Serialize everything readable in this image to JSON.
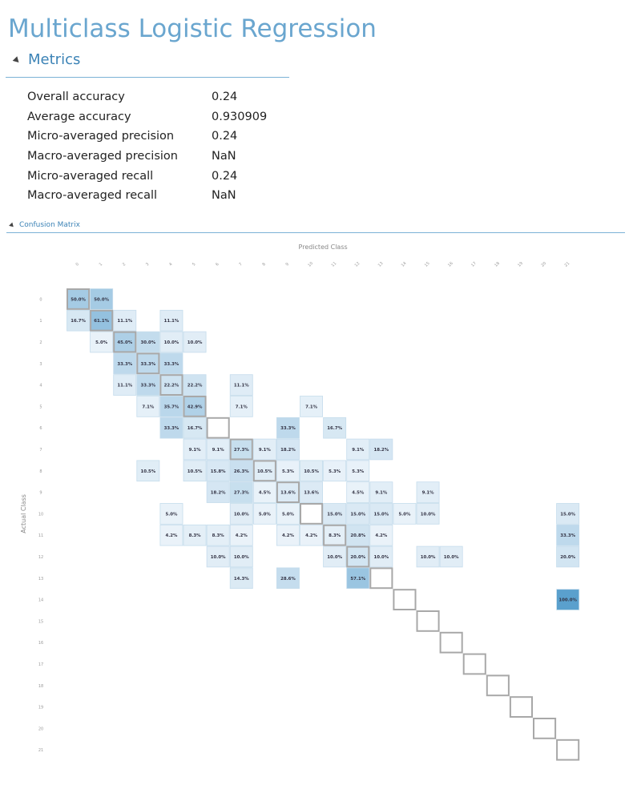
{
  "page": {
    "title": "Multiclass Logistic Regression"
  },
  "metrics": {
    "section_title": "Metrics",
    "rows": [
      {
        "name": "Overall accuracy",
        "value": "0.24"
      },
      {
        "name": "Average accuracy",
        "value": "0.930909"
      },
      {
        "name": "Micro-averaged precision",
        "value": "0.24"
      },
      {
        "name": "Macro-averaged precision",
        "value": "NaN"
      },
      {
        "name": "Micro-averaged recall",
        "value": "0.24"
      },
      {
        "name": "Macro-averaged recall",
        "value": "NaN"
      }
    ]
  },
  "confusion_matrix": {
    "section_title": "Confusion Matrix"
  },
  "colors": {
    "accent": "#6aa6cf",
    "heading": "#3c83b6",
    "rule": "#7bb2d6",
    "diagonal": "#a8a8a8"
  },
  "chart_data": {
    "type": "heatmap",
    "xlabel": "Predicted Class",
    "ylabel": "Actual Class",
    "x_labels": [
      "0",
      "1",
      "2",
      "3",
      "4",
      "5",
      "6",
      "7",
      "8",
      "9",
      "10",
      "11",
      "12",
      "13",
      "14",
      "15",
      "16",
      "17",
      "18",
      "19",
      "20",
      "21"
    ],
    "y_labels": [
      "0",
      "1",
      "2",
      "3",
      "4",
      "5",
      "6",
      "7",
      "8",
      "9",
      "10",
      "11",
      "12",
      "13",
      "14",
      "15",
      "16",
      "17",
      "18",
      "19",
      "20",
      "21"
    ],
    "value_format": "percent",
    "cells": [
      {
        "row": 0,
        "col": 0,
        "value": 50.0
      },
      {
        "row": 0,
        "col": 1,
        "value": 50.0
      },
      {
        "row": 1,
        "col": 0,
        "value": 16.7
      },
      {
        "row": 1,
        "col": 1,
        "value": 61.1
      },
      {
        "row": 1,
        "col": 2,
        "value": 11.1
      },
      {
        "row": 1,
        "col": 4,
        "value": 11.1
      },
      {
        "row": 2,
        "col": 1,
        "value": 5.0
      },
      {
        "row": 2,
        "col": 2,
        "value": 45.0
      },
      {
        "row": 2,
        "col": 3,
        "value": 30.0
      },
      {
        "row": 2,
        "col": 4,
        "value": 10.0
      },
      {
        "row": 2,
        "col": 5,
        "value": 10.0
      },
      {
        "row": 3,
        "col": 2,
        "value": 33.3
      },
      {
        "row": 3,
        "col": 3,
        "value": 33.3
      },
      {
        "row": 3,
        "col": 4,
        "value": 33.3
      },
      {
        "row": 4,
        "col": 2,
        "value": 11.1
      },
      {
        "row": 4,
        "col": 3,
        "value": 33.3
      },
      {
        "row": 4,
        "col": 4,
        "value": 22.2
      },
      {
        "row": 4,
        "col": 5,
        "value": 22.2
      },
      {
        "row": 4,
        "col": 7,
        "value": 11.1
      },
      {
        "row": 5,
        "col": 3,
        "value": 7.1
      },
      {
        "row": 5,
        "col": 4,
        "value": 35.7
      },
      {
        "row": 5,
        "col": 5,
        "value": 42.9
      },
      {
        "row": 5,
        "col": 7,
        "value": 7.1
      },
      {
        "row": 5,
        "col": 10,
        "value": 7.1
      },
      {
        "row": 6,
        "col": 4,
        "value": 33.3
      },
      {
        "row": 6,
        "col": 5,
        "value": 16.7
      },
      {
        "row": 6,
        "col": 9,
        "value": 33.3
      },
      {
        "row": 6,
        "col": 11,
        "value": 16.7
      },
      {
        "row": 7,
        "col": 5,
        "value": 9.1
      },
      {
        "row": 7,
        "col": 6,
        "value": 9.1
      },
      {
        "row": 7,
        "col": 7,
        "value": 27.3
      },
      {
        "row": 7,
        "col": 8,
        "value": 9.1
      },
      {
        "row": 7,
        "col": 9,
        "value": 18.2
      },
      {
        "row": 7,
        "col": 12,
        "value": 9.1
      },
      {
        "row": 7,
        "col": 13,
        "value": 18.2
      },
      {
        "row": 8,
        "col": 3,
        "value": 10.5
      },
      {
        "row": 8,
        "col": 5,
        "value": 10.5
      },
      {
        "row": 8,
        "col": 6,
        "value": 15.8
      },
      {
        "row": 8,
        "col": 7,
        "value": 26.3
      },
      {
        "row": 8,
        "col": 8,
        "value": 10.5
      },
      {
        "row": 8,
        "col": 9,
        "value": 5.3
      },
      {
        "row": 8,
        "col": 10,
        "value": 10.5
      },
      {
        "row": 8,
        "col": 11,
        "value": 5.3
      },
      {
        "row": 8,
        "col": 12,
        "value": 5.3
      },
      {
        "row": 9,
        "col": 6,
        "value": 18.2
      },
      {
        "row": 9,
        "col": 7,
        "value": 27.3
      },
      {
        "row": 9,
        "col": 8,
        "value": 4.5
      },
      {
        "row": 9,
        "col": 9,
        "value": 13.6
      },
      {
        "row": 9,
        "col": 10,
        "value": 13.6
      },
      {
        "row": 9,
        "col": 12,
        "value": 4.5
      },
      {
        "row": 9,
        "col": 13,
        "value": 9.1
      },
      {
        "row": 9,
        "col": 15,
        "value": 9.1
      },
      {
        "row": 10,
        "col": 4,
        "value": 5.0
      },
      {
        "row": 10,
        "col": 7,
        "value": 10.0
      },
      {
        "row": 10,
        "col": 8,
        "value": 5.0
      },
      {
        "row": 10,
        "col": 9,
        "value": 5.0
      },
      {
        "row": 10,
        "col": 11,
        "value": 15.0
      },
      {
        "row": 10,
        "col": 12,
        "value": 15.0
      },
      {
        "row": 10,
        "col": 13,
        "value": 15.0
      },
      {
        "row": 10,
        "col": 14,
        "value": 5.0
      },
      {
        "row": 10,
        "col": 15,
        "value": 10.0
      },
      {
        "row": 10,
        "col": 21,
        "value": 15.0
      },
      {
        "row": 11,
        "col": 4,
        "value": 4.2
      },
      {
        "row": 11,
        "col": 5,
        "value": 8.3
      },
      {
        "row": 11,
        "col": 6,
        "value": 8.3
      },
      {
        "row": 11,
        "col": 7,
        "value": 4.2
      },
      {
        "row": 11,
        "col": 9,
        "value": 4.2
      },
      {
        "row": 11,
        "col": 10,
        "value": 4.2
      },
      {
        "row": 11,
        "col": 11,
        "value": 8.3
      },
      {
        "row": 11,
        "col": 12,
        "value": 20.8
      },
      {
        "row": 11,
        "col": 13,
        "value": 4.2
      },
      {
        "row": 11,
        "col": 21,
        "value": 33.3
      },
      {
        "row": 12,
        "col": 6,
        "value": 10.0
      },
      {
        "row": 12,
        "col": 7,
        "value": 10.0
      },
      {
        "row": 12,
        "col": 11,
        "value": 10.0
      },
      {
        "row": 12,
        "col": 12,
        "value": 20.0
      },
      {
        "row": 12,
        "col": 13,
        "value": 10.0
      },
      {
        "row": 12,
        "col": 15,
        "value": 10.0
      },
      {
        "row": 12,
        "col": 16,
        "value": 10.0
      },
      {
        "row": 12,
        "col": 21,
        "value": 20.0
      },
      {
        "row": 13,
        "col": 7,
        "value": 14.3
      },
      {
        "row": 13,
        "col": 9,
        "value": 28.6
      },
      {
        "row": 13,
        "col": 12,
        "value": 57.1
      },
      {
        "row": 14,
        "col": 21,
        "value": 100.0
      }
    ]
  }
}
